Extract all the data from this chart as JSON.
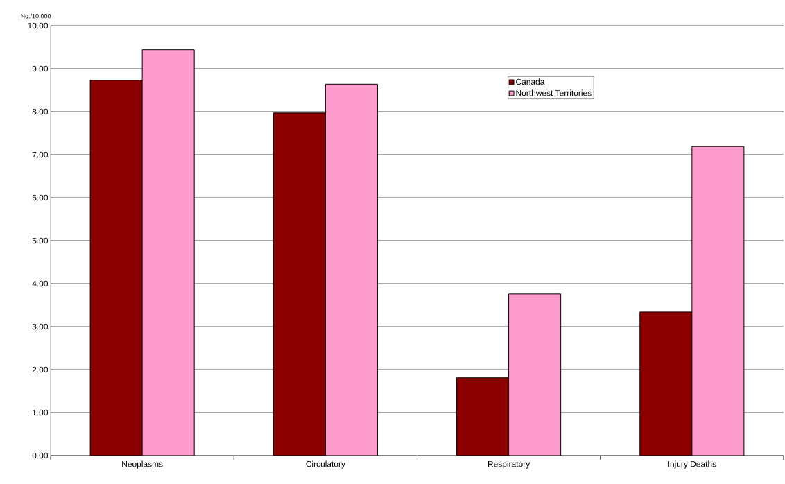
{
  "chart_data": {
    "type": "bar",
    "ylabel": "No./10,000",
    "categories": [
      "Neoplasms",
      "Circulatory",
      "Respiratory",
      "Injury Deaths"
    ],
    "series": [
      {
        "name": "Canada",
        "color": "#8b0000",
        "values": [
          8.73,
          7.97,
          1.81,
          3.34
        ]
      },
      {
        "name": "Northwest Territories",
        "color": "#fd9bcd",
        "values": [
          9.44,
          8.64,
          3.76,
          7.19
        ]
      }
    ],
    "ylim": [
      0,
      10
    ],
    "yticks": [
      {
        "value": 0,
        "label": "0.00"
      },
      {
        "value": 1,
        "label": "1.00"
      },
      {
        "value": 2,
        "label": "2.00"
      },
      {
        "value": 3,
        "label": "3.00"
      },
      {
        "value": 4,
        "label": "4.00"
      },
      {
        "value": 5,
        "label": "5.00"
      },
      {
        "value": 6,
        "label": "6.00"
      },
      {
        "value": 7,
        "label": "7.00"
      },
      {
        "value": 8,
        "label": "8.00"
      },
      {
        "value": 9,
        "label": "9.00"
      },
      {
        "value": 10,
        "label": "10.00"
      }
    ],
    "grid": "y",
    "legend": "top right"
  }
}
